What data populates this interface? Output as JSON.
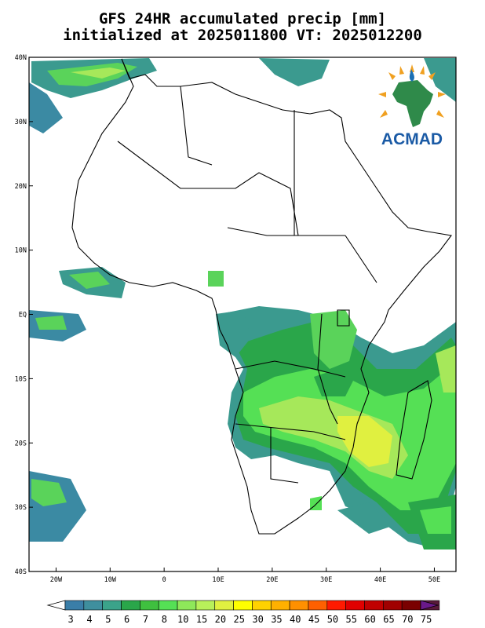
{
  "title": {
    "line1": "GFS 24HR accumulated precip [mm]",
    "line2": "initialized at 2025011800 VT: 2025012200"
  },
  "axes": {
    "lat_labels": [
      "40N",
      "30N",
      "20N",
      "10N",
      "EQ",
      "10S",
      "20S",
      "30S",
      "40S"
    ],
    "lon_labels": [
      "20W",
      "10W",
      "0",
      "10E",
      "20E",
      "30E",
      "40E",
      "50E"
    ],
    "lat_range": [
      -40,
      40
    ],
    "lon_range": [
      -25,
      54
    ]
  },
  "logo": {
    "text": "ACMAD"
  },
  "colorbar": {
    "levels": [
      "3",
      "4",
      "5",
      "6",
      "7",
      "8",
      "10",
      "15",
      "20",
      "25",
      "30",
      "35",
      "40",
      "45",
      "50",
      "55",
      "60",
      "65",
      "70",
      "75"
    ],
    "colors": [
      "#3a7ea8",
      "#3f8f9e",
      "#3ba38a",
      "#2aa64a",
      "#3fc03f",
      "#55e055",
      "#8ee85a",
      "#b8f05a",
      "#e0f040",
      "#ffff00",
      "#ffd200",
      "#ffb000",
      "#ff9000",
      "#ff6000",
      "#ff1a00",
      "#e00000",
      "#c00000",
      "#a00000",
      "#7a0000",
      "#5a1a3a",
      "#6a1a8a"
    ]
  },
  "colors": {
    "land_line": "#000000",
    "frame": "#000000"
  }
}
